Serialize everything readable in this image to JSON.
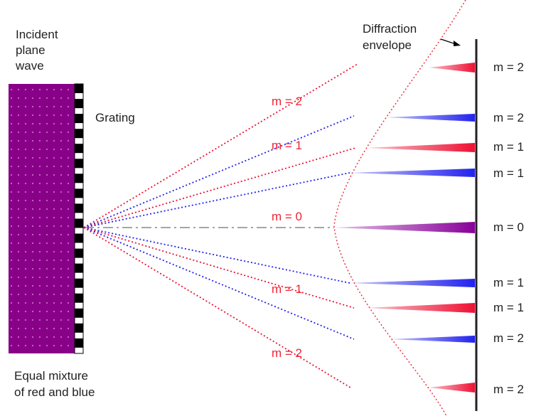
{
  "colors": {
    "red": "#ee1133",
    "blue": "#2222ee",
    "purple": "#880099",
    "wave_dots": "#c76ac7",
    "grating": "#000000",
    "screen": "#222222",
    "axis": "#888888",
    "envelope": "#ee3344"
  },
  "labels": {
    "incident_line1": "Incident",
    "incident_line2": "plane",
    "incident_line3": "wave",
    "grating": "Grating",
    "mixture_line1": "Equal mixture",
    "mixture_line2": "of red and blue",
    "envelope_line1": "Diffraction",
    "envelope_line2": "envelope"
  },
  "order_labels_on_rays": {
    "upper_m2": "m = 2",
    "upper_m1": "m = 1",
    "center_m0": "m = 0",
    "lower_m1": "m = 1",
    "lower_m2": "m = 2"
  },
  "screen_labels": [
    {
      "text": "m = 2",
      "color": "red"
    },
    {
      "text": "m = 2",
      "color": "blue"
    },
    {
      "text": "m = 1",
      "color": "red"
    },
    {
      "text": "m = 1",
      "color": "blue"
    },
    {
      "text": "m = 0",
      "color": "purple"
    },
    {
      "text": "m = 1",
      "color": "blue"
    },
    {
      "text": "m = 1",
      "color": "red"
    },
    {
      "text": "m = 2",
      "color": "blue"
    },
    {
      "text": "m = 2",
      "color": "red"
    }
  ]
}
